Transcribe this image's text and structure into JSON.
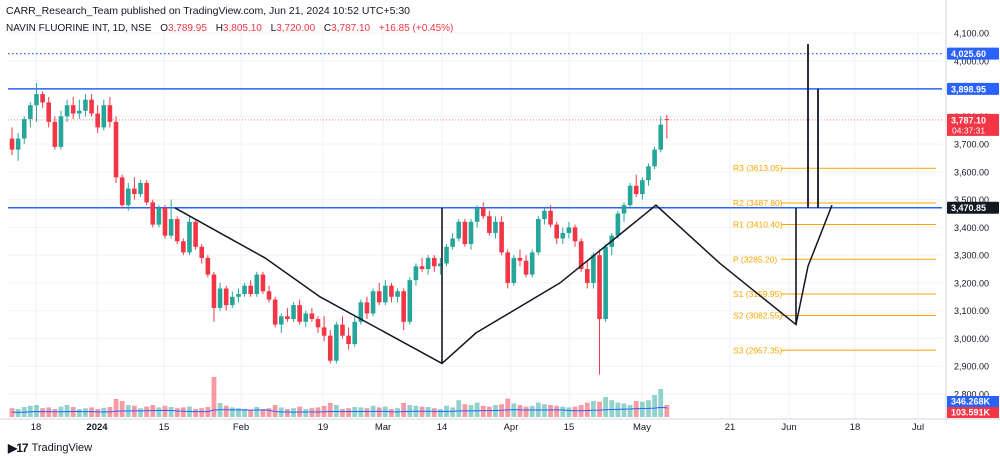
{
  "header": {
    "published": "CARR_Research_Team published on TradingView.com, Jun 21, 2024 10:52 UTC+5:30",
    "symbol": "NAVIN FLUORINE INT, 1D, NSE",
    "ohlc": [
      {
        "label": "O",
        "value": "3,789.95"
      },
      {
        "label": "H",
        "value": "3,805.10"
      },
      {
        "label": "L",
        "value": "3,720.00"
      },
      {
        "label": "C",
        "value": "3,787.10"
      }
    ],
    "change": "+16.85 (+0.45%)"
  },
  "footer": {
    "brand": "TradingView"
  },
  "colors": {
    "up": "#26a69a",
    "down": "#f23645",
    "level": "#2962ff",
    "pivot": "#f7a600"
  },
  "chart_data": {
    "type": "candlestick",
    "y_range": [
      2800,
      4100
    ],
    "y_ticks": [
      "2,800.00",
      "2,900.00",
      "3,000.00",
      "3,100.00",
      "3,200.00",
      "3,300.00",
      "3,400.00",
      "3,500.00",
      "3,600.00",
      "3,700.00",
      "3,800.00",
      "3,900.00",
      "4,000.00",
      "4,100.00"
    ],
    "x_ticks": [
      "18",
      "2024",
      "15",
      "Feb",
      "19",
      "Mar",
      "14",
      "Apr",
      "15",
      "May",
      "21",
      "Jun",
      "18",
      "Jul"
    ],
    "price_labels": {
      "level_4025": "4,025.60",
      "level_3899": "3,898.95",
      "last": "3,787.10",
      "countdown": "04:37:31",
      "level_3471": "3,470.85",
      "vol_up": "346.268K",
      "vol_down": "103.591K"
    },
    "levels": [
      {
        "label": "4,025.60",
        "value": 4025.6,
        "style": "dotted"
      },
      {
        "label": "3,898.95",
        "value": 3898.95,
        "style": "solid"
      },
      {
        "label": "3,470.85",
        "value": 3470.85,
        "style": "solid"
      }
    ],
    "pivots": [
      {
        "label": "R3 (3613.05)",
        "value": 3613.05
      },
      {
        "label": "R2 (3487.80)",
        "value": 3487.8
      },
      {
        "label": "R1 (3410.40)",
        "value": 3410.4
      },
      {
        "label": "P (3285.20)",
        "value": 3285.2
      },
      {
        "label": "S1 (3159.95)",
        "value": 3159.95
      },
      {
        "label": "S2 (3082.55)",
        "value": 3082.55
      },
      {
        "label": "S3 (2957.35)",
        "value": 2957.35
      }
    ],
    "candles": [
      [
        3720,
        3760,
        3660,
        3680
      ],
      [
        3680,
        3740,
        3640,
        3720
      ],
      [
        3720,
        3800,
        3700,
        3790
      ],
      [
        3790,
        3850,
        3760,
        3840
      ],
      [
        3840,
        3920,
        3780,
        3880
      ],
      [
        3880,
        3890,
        3830,
        3850
      ],
      [
        3850,
        3870,
        3760,
        3780
      ],
      [
        3780,
        3800,
        3680,
        3690
      ],
      [
        3690,
        3820,
        3680,
        3800
      ],
      [
        3800,
        3860,
        3780,
        3840
      ],
      [
        3840,
        3870,
        3790,
        3810
      ],
      [
        3810,
        3860,
        3790,
        3820
      ],
      [
        3820,
        3880,
        3800,
        3860
      ],
      [
        3860,
        3880,
        3800,
        3810
      ],
      [
        3810,
        3840,
        3740,
        3760
      ],
      [
        3760,
        3860,
        3750,
        3840
      ],
      [
        3840,
        3870,
        3760,
        3780
      ],
      [
        3780,
        3800,
        3560,
        3580
      ],
      [
        3580,
        3590,
        3470,
        3480
      ],
      [
        3480,
        3560,
        3460,
        3540
      ],
      [
        3540,
        3580,
        3500,
        3520
      ],
      [
        3520,
        3570,
        3510,
        3560
      ],
      [
        3560,
        3570,
        3480,
        3490
      ],
      [
        3490,
        3500,
        3400,
        3410
      ],
      [
        3410,
        3480,
        3400,
        3470
      ],
      [
        3470,
        3480,
        3360,
        3370
      ],
      [
        3370,
        3500,
        3360,
        3430
      ],
      [
        3430,
        3440,
        3340,
        3350
      ],
      [
        3350,
        3360,
        3300,
        3310
      ],
      [
        3310,
        3440,
        3300,
        3420
      ],
      [
        3420,
        3430,
        3320,
        3330
      ],
      [
        3330,
        3340,
        3270,
        3290
      ],
      [
        3290,
        3300,
        3220,
        3230
      ],
      [
        3230,
        3240,
        3060,
        3110
      ],
      [
        3110,
        3200,
        3100,
        3180
      ],
      [
        3180,
        3190,
        3100,
        3120
      ],
      [
        3120,
        3170,
        3110,
        3150
      ],
      [
        3150,
        3180,
        3130,
        3160
      ],
      [
        3160,
        3200,
        3150,
        3190
      ],
      [
        3190,
        3210,
        3150,
        3160
      ],
      [
        3160,
        3240,
        3150,
        3230
      ],
      [
        3230,
        3240,
        3160,
        3170
      ],
      [
        3170,
        3190,
        3130,
        3140
      ],
      [
        3140,
        3150,
        3040,
        3050
      ],
      [
        3050,
        3090,
        3020,
        3080
      ],
      [
        3080,
        3110,
        3060,
        3070
      ],
      [
        3070,
        3130,
        3060,
        3120
      ],
      [
        3120,
        3140,
        3050,
        3060
      ],
      [
        3060,
        3100,
        3040,
        3090
      ],
      [
        3090,
        3110,
        3060,
        3070
      ],
      [
        3070,
        3080,
        3020,
        3040
      ],
      [
        3040,
        3080,
        2990,
        3010
      ],
      [
        3010,
        3030,
        2910,
        2920
      ],
      [
        2920,
        3060,
        2910,
        3050
      ],
      [
        3050,
        3080,
        3000,
        3010
      ],
      [
        3010,
        3040,
        2960,
        2980
      ],
      [
        2980,
        3080,
        2970,
        3060
      ],
      [
        3060,
        3140,
        3050,
        3130
      ],
      [
        3130,
        3150,
        3070,
        3090
      ],
      [
        3090,
        3180,
        3080,
        3170
      ],
      [
        3170,
        3200,
        3120,
        3130
      ],
      [
        3130,
        3210,
        3120,
        3190
      ],
      [
        3190,
        3200,
        3130,
        3150
      ],
      [
        3150,
        3180,
        3130,
        3170
      ],
      [
        3170,
        3180,
        3030,
        3060
      ],
      [
        3060,
        3220,
        3050,
        3210
      ],
      [
        3210,
        3270,
        3190,
        3260
      ],
      [
        3260,
        3290,
        3240,
        3250
      ],
      [
        3250,
        3300,
        3230,
        3290
      ],
      [
        3290,
        3300,
        3240,
        3260
      ],
      [
        3260,
        3290,
        3230,
        3270
      ],
      [
        3270,
        3340,
        3260,
        3330
      ],
      [
        3330,
        3380,
        3320,
        3360
      ],
      [
        3360,
        3430,
        3350,
        3420
      ],
      [
        3420,
        3430,
        3330,
        3340
      ],
      [
        3340,
        3430,
        3320,
        3420
      ],
      [
        3420,
        3480,
        3400,
        3470
      ],
      [
        3470,
        3490,
        3430,
        3440
      ],
      [
        3440,
        3460,
        3370,
        3380
      ],
      [
        3380,
        3440,
        3360,
        3420
      ],
      [
        3420,
        3440,
        3300,
        3310
      ],
      [
        3310,
        3320,
        3180,
        3200
      ],
      [
        3200,
        3300,
        3190,
        3290
      ],
      [
        3290,
        3320,
        3260,
        3280
      ],
      [
        3280,
        3300,
        3220,
        3230
      ],
      [
        3230,
        3320,
        3220,
        3310
      ],
      [
        3310,
        3440,
        3300,
        3430
      ],
      [
        3430,
        3470,
        3410,
        3460
      ],
      [
        3460,
        3480,
        3400,
        3410
      ],
      [
        3410,
        3420,
        3340,
        3360
      ],
      [
        3360,
        3400,
        3340,
        3380
      ],
      [
        3380,
        3420,
        3360,
        3400
      ],
      [
        3400,
        3410,
        3330,
        3350
      ],
      [
        3350,
        3360,
        3240,
        3250
      ],
      [
        3250,
        3280,
        3180,
        3200
      ],
      [
        3200,
        3310,
        3180,
        3300
      ],
      [
        3300,
        3320,
        2870,
        3070
      ],
      [
        3070,
        3340,
        3060,
        3330
      ],
      [
        3330,
        3380,
        3300,
        3370
      ],
      [
        3370,
        3460,
        3360,
        3450
      ],
      [
        3450,
        3490,
        3420,
        3480
      ],
      [
        3480,
        3560,
        3470,
        3550
      ],
      [
        3550,
        3590,
        3510,
        3520
      ],
      [
        3520,
        3580,
        3500,
        3570
      ],
      [
        3570,
        3630,
        3550,
        3620
      ],
      [
        3620,
        3690,
        3610,
        3680
      ],
      [
        3680,
        3800,
        3670,
        3770
      ],
      [
        3789.95,
        3805.1,
        3720,
        3787.1
      ]
    ],
    "volumes": [
      0.22,
      0.2,
      0.25,
      0.28,
      0.3,
      0.22,
      0.24,
      0.2,
      0.26,
      0.3,
      0.25,
      0.2,
      0.22,
      0.24,
      0.2,
      0.23,
      0.25,
      0.45,
      0.4,
      0.3,
      0.28,
      0.22,
      0.26,
      0.3,
      0.24,
      0.28,
      0.25,
      0.22,
      0.24,
      0.26,
      0.2,
      0.22,
      0.25,
      1.0,
      0.35,
      0.28,
      0.24,
      0.22,
      0.2,
      0.18,
      0.25,
      0.2,
      0.22,
      0.3,
      0.24,
      0.2,
      0.22,
      0.26,
      0.2,
      0.22,
      0.24,
      0.28,
      0.35,
      0.3,
      0.2,
      0.22,
      0.25,
      0.24,
      0.22,
      0.28,
      0.24,
      0.26,
      0.2,
      0.22,
      0.35,
      0.3,
      0.28,
      0.26,
      0.25,
      0.22,
      0.2,
      0.28,
      0.24,
      0.42,
      0.32,
      0.3,
      0.36,
      0.28,
      0.26,
      0.3,
      0.32,
      0.46,
      0.34,
      0.3,
      0.26,
      0.28,
      0.36,
      0.32,
      0.3,
      0.28,
      0.26,
      0.24,
      0.26,
      0.3,
      0.36,
      0.4,
      0.38,
      0.5,
      0.42,
      0.36,
      0.34,
      0.3,
      0.4,
      0.38,
      0.42,
      0.55,
      0.7,
      0.3
    ]
  }
}
